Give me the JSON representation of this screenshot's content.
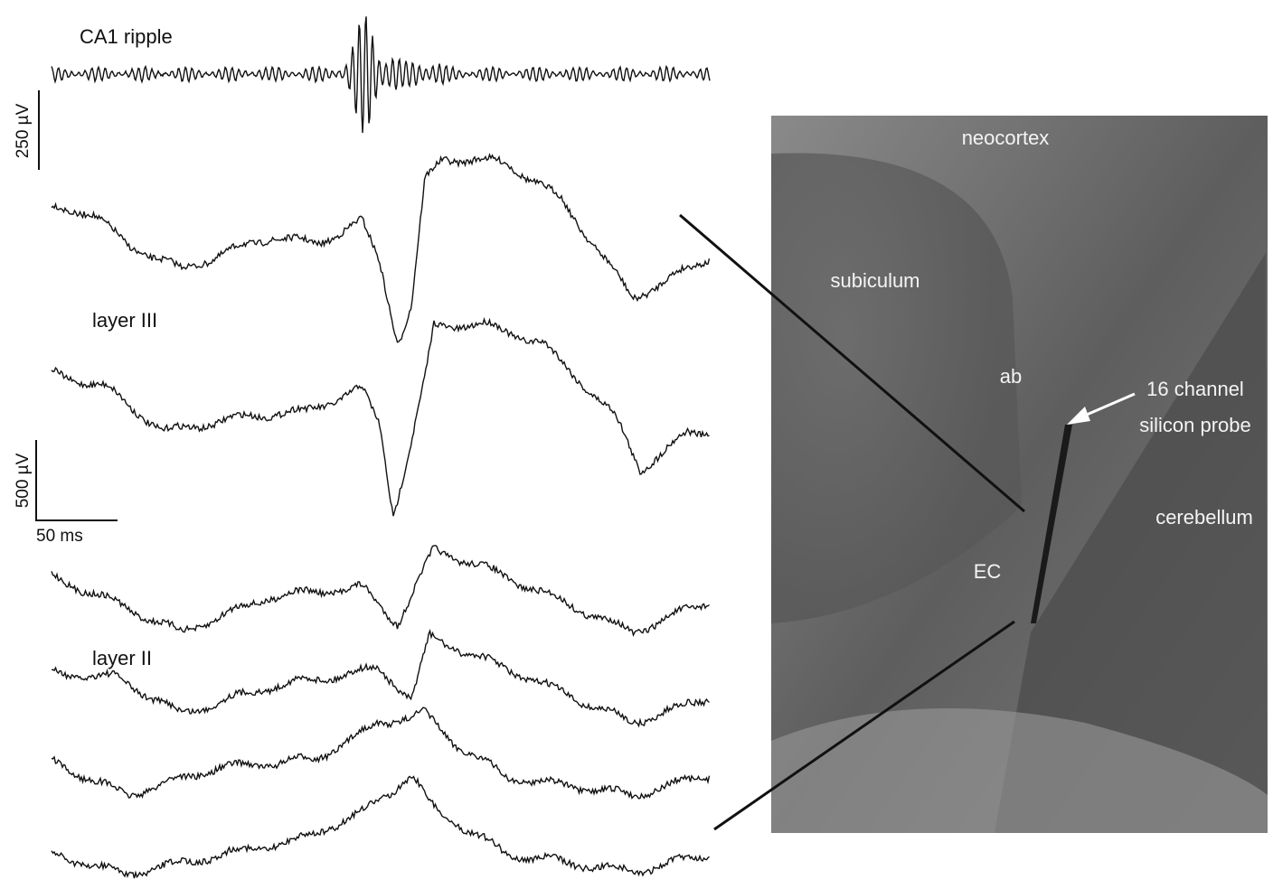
{
  "traces": {
    "ripple_label": "CA1 ripple",
    "layer3_label": "layer III",
    "layer2_label": "layer II"
  },
  "scale_bars": {
    "ripple_amplitude": "250 µV",
    "amplitude": "500 µV",
    "time": "50 ms"
  },
  "image": {
    "labels": {
      "neocortex": "neocortex",
      "subiculum": "subiculum",
      "ab": "ab",
      "probe_line1": "16 channel",
      "probe_line2": "silicon probe",
      "cerebellum": "cerebellum",
      "ec": "EC"
    }
  }
}
